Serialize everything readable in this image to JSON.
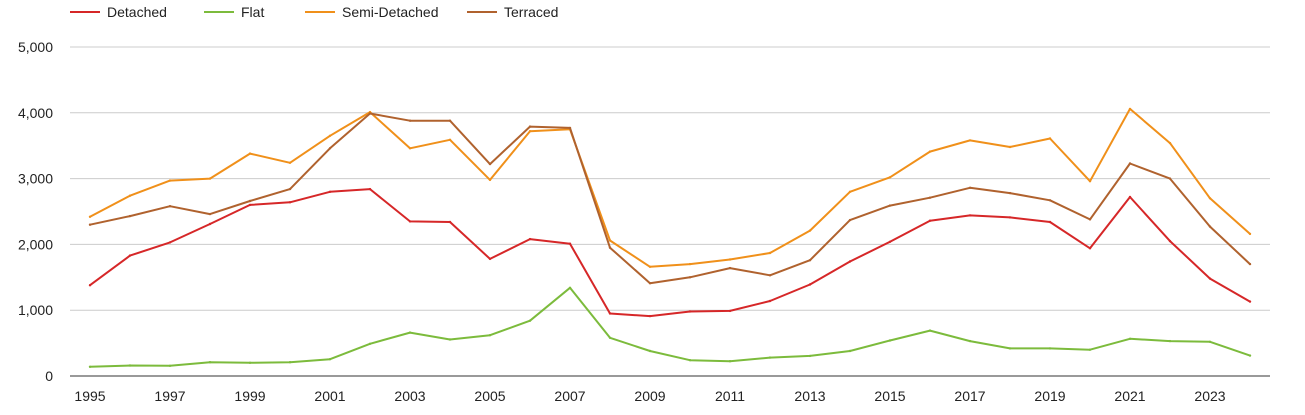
{
  "chart_data": {
    "type": "line",
    "title": "",
    "xlabel": "",
    "ylabel": "",
    "ylim": [
      0,
      5000
    ],
    "xlim": [
      1995,
      2024
    ],
    "grid": true,
    "legend_position": "top-left",
    "y_ticks": [
      {
        "value": 0,
        "label": "0"
      },
      {
        "value": 1000,
        "label": "1,000"
      },
      {
        "value": 2000,
        "label": "2,000"
      },
      {
        "value": 3000,
        "label": "3,000"
      },
      {
        "value": 4000,
        "label": "4,000"
      },
      {
        "value": 5000,
        "label": "5,000"
      }
    ],
    "x_ticks": [
      {
        "value": 1995,
        "label": "1995"
      },
      {
        "value": 1997,
        "label": "1997"
      },
      {
        "value": 1999,
        "label": "1999"
      },
      {
        "value": 2001,
        "label": "2001"
      },
      {
        "value": 2003,
        "label": "2003"
      },
      {
        "value": 2005,
        "label": "2005"
      },
      {
        "value": 2007,
        "label": "2007"
      },
      {
        "value": 2009,
        "label": "2009"
      },
      {
        "value": 2011,
        "label": "2011"
      },
      {
        "value": 2013,
        "label": "2013"
      },
      {
        "value": 2015,
        "label": "2015"
      },
      {
        "value": 2017,
        "label": "2017"
      },
      {
        "value": 2019,
        "label": "2019"
      },
      {
        "value": 2021,
        "label": "2021"
      },
      {
        "value": 2023,
        "label": "2023"
      }
    ],
    "x": [
      1995,
      1996,
      1997,
      1998,
      1999,
      2000,
      2001,
      2002,
      2003,
      2004,
      2005,
      2006,
      2007,
      2008,
      2009,
      2010,
      2011,
      2012,
      2013,
      2014,
      2015,
      2016,
      2017,
      2018,
      2019,
      2020,
      2021,
      2022,
      2023,
      2024
    ],
    "series": [
      {
        "name": "Detached",
        "color": "#d62728",
        "values": [
          1380,
          1830,
          2030,
          2310,
          2600,
          2640,
          2800,
          2840,
          2350,
          2340,
          1780,
          2080,
          2010,
          950,
          910,
          980,
          990,
          1140,
          1390,
          1740,
          2040,
          2360,
          2440,
          2410,
          2340,
          1940,
          2720,
          2050,
          1480,
          1130
        ]
      },
      {
        "name": "Flat",
        "color": "#7cbb3c",
        "values": [
          140,
          160,
          155,
          210,
          200,
          210,
          255,
          490,
          660,
          555,
          620,
          840,
          1340,
          580,
          380,
          240,
          225,
          280,
          305,
          380,
          540,
          690,
          530,
          420,
          420,
          400,
          565,
          530,
          520,
          310
        ]
      },
      {
        "name": "Semi-Detached",
        "color": "#f0901a",
        "values": [
          2420,
          2740,
          2970,
          3000,
          3380,
          3240,
          3650,
          4010,
          3460,
          3590,
          2980,
          3720,
          3750,
          2060,
          1660,
          1700,
          1770,
          1870,
          2210,
          2800,
          3020,
          3410,
          3580,
          3480,
          3610,
          2960,
          4060,
          3540,
          2700,
          2160
        ]
      },
      {
        "name": "Terraced",
        "color": "#b0622e",
        "values": [
          2300,
          2430,
          2580,
          2460,
          2660,
          2840,
          3460,
          3990,
          3880,
          3880,
          3220,
          3790,
          3770,
          1950,
          1410,
          1500,
          1640,
          1530,
          1760,
          2370,
          2590,
          2710,
          2860,
          2780,
          2670,
          2380,
          3230,
          3000,
          2270,
          1700
        ]
      }
    ]
  }
}
